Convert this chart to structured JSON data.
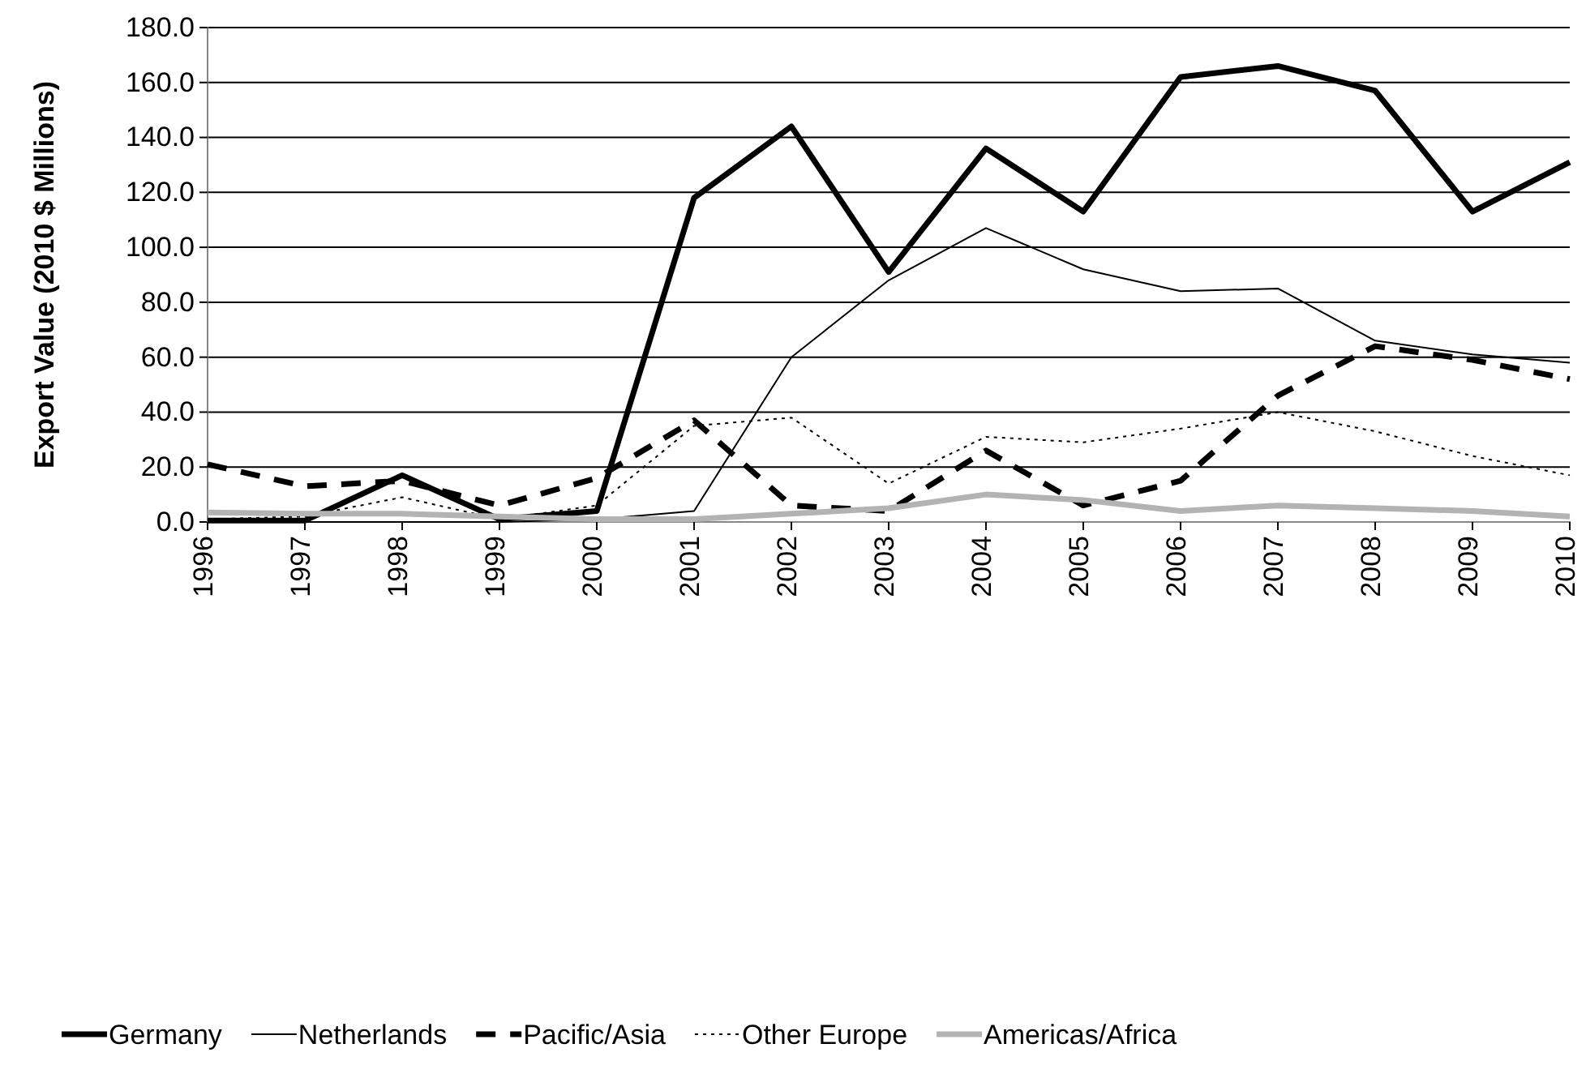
{
  "chart_data": {
    "type": "line",
    "ylabel": "Export Value (2010 $ Millions)",
    "categories": [
      "1996",
      "1997",
      "1998",
      "1999",
      "2000",
      "2001",
      "2002",
      "2003",
      "2004",
      "2005",
      "2006",
      "2007",
      "2008",
      "2009",
      "2010"
    ],
    "ylim": [
      0,
      180
    ],
    "yticks": [
      {
        "value": 0,
        "label": "0.0"
      },
      {
        "value": 20,
        "label": "20.0"
      },
      {
        "value": 40,
        "label": "40.0"
      },
      {
        "value": 60,
        "label": "60.0"
      },
      {
        "value": 80,
        "label": "80.0"
      },
      {
        "value": 100,
        "label": "100.0"
      },
      {
        "value": 120,
        "label": "120.0"
      },
      {
        "value": 140,
        "label": "140.0"
      },
      {
        "value": 160,
        "label": "160.0"
      },
      {
        "value": 180,
        "label": "180.0"
      }
    ],
    "grid": "y",
    "legend": "bottom",
    "marker": "none",
    "series": [
      {
        "name": "Germany",
        "color": "#000000",
        "line_style": "solid",
        "values": [
          0.5,
          0.5,
          17,
          1,
          4,
          118,
          144,
          91,
          136,
          113,
          162,
          166,
          157,
          113,
          131
        ]
      },
      {
        "name": "Netherlands",
        "color": "#000000",
        "line_style": "solid",
        "values": [
          0,
          0,
          0,
          0,
          1,
          4,
          60,
          88,
          107,
          92,
          84,
          85,
          66,
          61,
          58
        ]
      },
      {
        "name": "Pacific/Asia",
        "color": "#000000",
        "line_style": "dashed",
        "values": [
          21,
          13,
          15,
          6,
          16,
          37,
          6,
          4,
          26,
          6,
          15,
          46,
          64,
          59,
          52
        ]
      },
      {
        "name": "Other Europe",
        "color": "#000000",
        "line_style": "dotted",
        "values": [
          1,
          2,
          9,
          1,
          6,
          35,
          38,
          14,
          31,
          29,
          34,
          40,
          33,
          24,
          17
        ]
      },
      {
        "name": "Americas/Africa",
        "color": "#b3b3b3",
        "line_style": "solid",
        "values": [
          3.5,
          3,
          3,
          2,
          1,
          1,
          3,
          5,
          10,
          8,
          4,
          6,
          5,
          4,
          2
        ]
      }
    ]
  }
}
